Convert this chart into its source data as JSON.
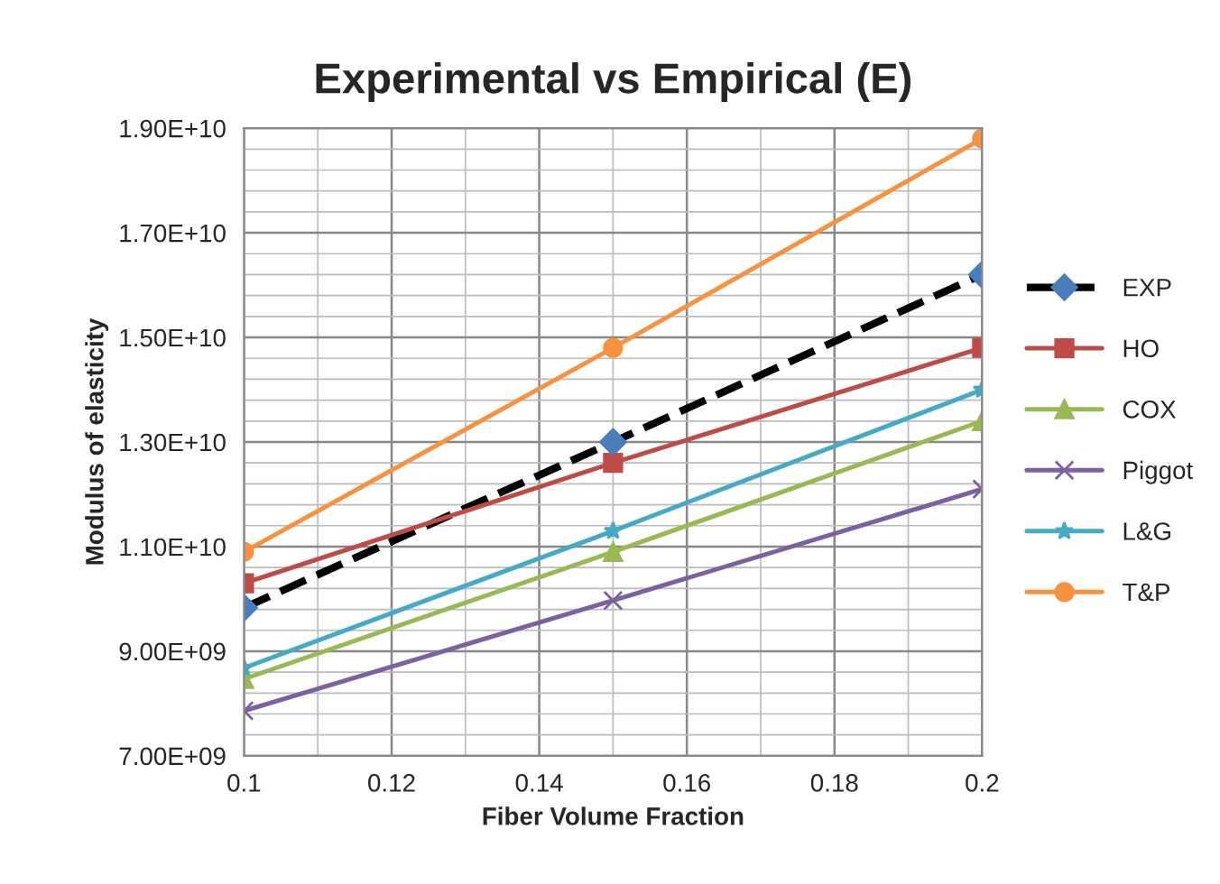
{
  "chart_data": {
    "type": "line",
    "title": "Experimental vs Empirical (E)",
    "xlabel": "Fiber Volume Fraction",
    "ylabel": "Modulus of elasticity",
    "x": [
      0.1,
      0.15,
      0.2
    ],
    "series": [
      {
        "name": "EXP",
        "color": "#000000",
        "values": [
          9830000000.0,
          13000000000.0,
          16200000000.0
        ],
        "line_style": "dashed",
        "marker": "diamond",
        "colors": [
          "#4a7ebb",
          "#4a7ebb",
          "#4a7ebb"
        ]
      },
      {
        "name": "HO",
        "color": "#be4b48",
        "values": [
          10300000000.0,
          12600000000.0,
          14800000000.0
        ],
        "marker": "square"
      },
      {
        "name": "COX",
        "color": "#98b954",
        "values": [
          8470000000.0,
          10900000000.0,
          13400000000.0
        ],
        "marker": "triangle"
      },
      {
        "name": "Piggot",
        "color": "#7d60a0",
        "values": [
          7860000000.0,
          9970000000.0,
          12100000000.0
        ],
        "marker": "cross"
      },
      {
        "name": "L&G",
        "color": "#46aac5",
        "values": [
          8680000000.0,
          11300000000.0,
          14000000000.0
        ],
        "marker": "star"
      },
      {
        "name": "T&P",
        "color": "#f69240",
        "values": [
          10900000000.0,
          14800000000.0,
          18800000000.0
        ],
        "marker": "circle"
      }
    ],
    "xlim": [
      0.1,
      0.2
    ],
    "xticks": [
      0.1,
      0.12,
      0.14,
      0.16,
      0.18,
      0.2
    ],
    "ylim": [
      7000000000.0,
      19000000000.0
    ],
    "yticks": [
      {
        "value": 7000000000.0,
        "label": "7.00E+09"
      },
      {
        "value": 9000000000.0,
        "label": "9.00E+09"
      },
      {
        "value": 11000000000.0,
        "label": "1.10E+10"
      },
      {
        "value": 13000000000.0,
        "label": "1.30E+10"
      },
      {
        "value": 15000000000.0,
        "label": "1.50E+10"
      },
      {
        "value": 17000000000.0,
        "label": "1.70E+10"
      },
      {
        "value": 19000000000.0,
        "label": "1.90E+10"
      }
    ],
    "grid": true,
    "legend": "right"
  }
}
